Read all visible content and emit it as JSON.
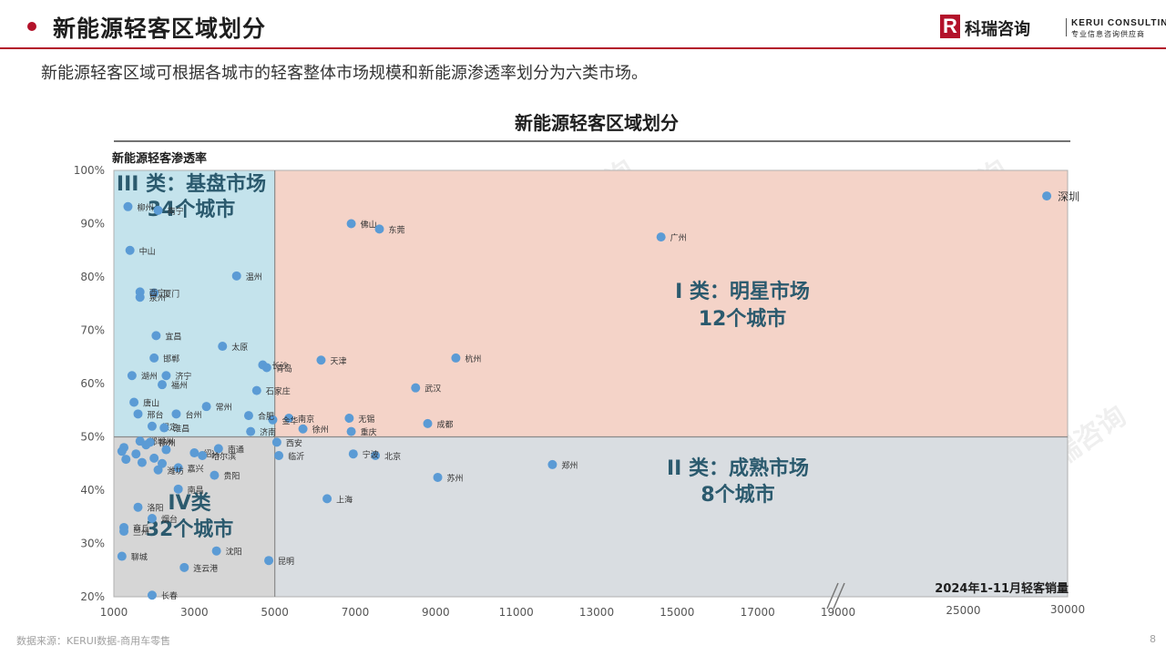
{
  "header": {
    "title": "新能源轻客区域划分",
    "logo_cn": "科瑞咨询",
    "logo_en": "KERUI CONSULTING",
    "logo_tagline": "专业信息咨询供应商",
    "logo_mark": "R"
  },
  "subtitle": "新能源轻客区域可根据各城市的轻客整体市场规模和新能源渗透率划分为六类市场。",
  "footer": {
    "source": "数据来源：KERUI数据-商用车零售",
    "page": "8"
  },
  "watermark_text": "科瑞咨询",
  "colors": {
    "accent": "#b3122a",
    "point": "#5b9bd5",
    "q1": "#f4d3c8",
    "q2": "#d9dde1",
    "q3": "#c4e3ec",
    "q4": "#d6d6d6",
    "quadrant_label": "#2b5a6e"
  },
  "chart_data": {
    "type": "scatter",
    "title": "新能源轻客区域划分",
    "xlabel": "2024年1-11月轻客销量",
    "ylabel": "新能源轻客渗透率",
    "x_ticks": [
      "1000",
      "3000",
      "5000",
      "7000",
      "9000",
      "11000",
      "13000",
      "15000",
      "17000",
      "19000",
      "25000",
      "30000"
    ],
    "y_ticks": [
      "100%",
      "90%",
      "80%",
      "70%",
      "60%",
      "50%",
      "40%",
      "30%",
      "20%"
    ],
    "xlim": [
      1000,
      30000
    ],
    "ylim": [
      20,
      100
    ],
    "x_axis_break": true,
    "dividers": {
      "x": 5000,
      "y": 50
    },
    "quadrants": [
      {
        "label": "I 类：明星市场",
        "count": "12个城市"
      },
      {
        "label": "II 类：成熟市场",
        "count": "8个城市"
      },
      {
        "label": "III 类：基盘市场",
        "count": "34个城市"
      },
      {
        "label": "IV类",
        "count": "32个城市"
      }
    ],
    "points": [
      {
        "name": "深圳",
        "x": 29000,
        "y": 95.2
      },
      {
        "name": "佛山",
        "x": 6900,
        "y": 90.0
      },
      {
        "name": "东莞",
        "x": 7600,
        "y": 89.0
      },
      {
        "name": "广州",
        "x": 14600,
        "y": 87.5
      },
      {
        "name": "杭州",
        "x": 9500,
        "y": 64.8
      },
      {
        "name": "天津",
        "x": 6150,
        "y": 64.4
      },
      {
        "name": "武汉",
        "x": 8500,
        "y": 59.2
      },
      {
        "name": "成都",
        "x": 8800,
        "y": 52.5
      },
      {
        "name": "长沙",
        "x": 4700,
        "y": 63.5
      },
      {
        "name": "青岛",
        "x": 4800,
        "y": 63.0
      },
      {
        "name": "石家庄",
        "x": 4550,
        "y": 58.7
      },
      {
        "name": "南京",
        "x": 5350,
        "y": 53.5
      },
      {
        "name": "无锡",
        "x": 6850,
        "y": 53.5
      },
      {
        "name": "重庆",
        "x": 6900,
        "y": 51.0
      },
      {
        "name": "徐州",
        "x": 5700,
        "y": 51.5
      },
      {
        "name": "金华",
        "x": 4950,
        "y": 53.2
      },
      {
        "name": "合肥",
        "x": 4350,
        "y": 54.0
      },
      {
        "name": "济南",
        "x": 4400,
        "y": 51.0
      },
      {
        "name": "郑州",
        "x": 11900,
        "y": 44.8
      },
      {
        "name": "北京",
        "x": 7500,
        "y": 46.5
      },
      {
        "name": "宁波",
        "x": 6950,
        "y": 46.8
      },
      {
        "name": "苏州",
        "x": 9050,
        "y": 42.4
      },
      {
        "name": "上海",
        "x": 6300,
        "y": 38.4
      },
      {
        "name": "西安",
        "x": 5050,
        "y": 49.0
      },
      {
        "name": "临沂",
        "x": 5100,
        "y": 46.5
      },
      {
        "name": "昆明",
        "x": 4850,
        "y": 26.8
      },
      {
        "name": "柳州",
        "x": 1350,
        "y": 93.2
      },
      {
        "name": "南宁",
        "x": 2100,
        "y": 92.5
      },
      {
        "name": "中山",
        "x": 1400,
        "y": 85.0
      },
      {
        "name": "温州",
        "x": 4050,
        "y": 80.2
      },
      {
        "name": "厦门",
        "x": 2000,
        "y": 77.0
      },
      {
        "name": "西宁",
        "x": 1650,
        "y": 77.2
      },
      {
        "name": "泉州",
        "x": 1650,
        "y": 76.2
      },
      {
        "name": "宜昌",
        "x": 2050,
        "y": 69.0
      },
      {
        "name": "太原",
        "x": 3700,
        "y": 67.0
      },
      {
        "name": "邯郸",
        "x": 2000,
        "y": 64.8
      },
      {
        "name": "湖州",
        "x": 1450,
        "y": 61.5
      },
      {
        "name": "济宁",
        "x": 2300,
        "y": 61.5
      },
      {
        "name": "福州",
        "x": 2200,
        "y": 59.8
      },
      {
        "name": "唐山",
        "x": 1500,
        "y": 56.5
      },
      {
        "name": "常州",
        "x": 3300,
        "y": 55.7
      },
      {
        "name": "邢台",
        "x": 1600,
        "y": 54.3
      },
      {
        "name": "台州",
        "x": 2550,
        "y": 54.3
      },
      {
        "name": "保定",
        "x": 1950,
        "y": 52.0
      },
      {
        "name": "淮昌",
        "x": 2250,
        "y": 51.7
      },
      {
        "name": "绍兴",
        "x": 3000,
        "y": 47.0
      },
      {
        "name": "南通",
        "x": 3600,
        "y": 47.8
      },
      {
        "name": "哈尔滨",
        "x": 3200,
        "y": 46.5
      },
      {
        "name": "嘉兴",
        "x": 2600,
        "y": 44.2
      },
      {
        "name": "潍坊",
        "x": 2100,
        "y": 43.8
      },
      {
        "name": "贵阳",
        "x": 3500,
        "y": 42.8
      },
      {
        "name": "南昌",
        "x": 2600,
        "y": 40.2
      },
      {
        "name": "洛阳",
        "x": 1600,
        "y": 36.8
      },
      {
        "name": "烟台",
        "x": 1950,
        "y": 34.7
      },
      {
        "name": "商丘",
        "x": 1250,
        "y": 33.0
      },
      {
        "name": "兰州",
        "x": 1250,
        "y": 32.3
      },
      {
        "name": "聊城",
        "x": 1200,
        "y": 27.6
      },
      {
        "name": "沈阳",
        "x": 3550,
        "y": 28.6
      },
      {
        "name": "连云港",
        "x": 2750,
        "y": 25.5
      },
      {
        "name": "长春",
        "x": 1950,
        "y": 20.3
      },
      {
        "name": "邯郸州",
        "x": 1650,
        "y": 49.2
      },
      {
        "name": "扬州",
        "x": 1900,
        "y": 49.0
      },
      {
        "name": "",
        "x": 1250,
        "y": 48.0
      },
      {
        "name": "",
        "x": 1200,
        "y": 47.3
      },
      {
        "name": "",
        "x": 1300,
        "y": 45.8
      },
      {
        "name": "",
        "x": 1550,
        "y": 46.8
      },
      {
        "name": "",
        "x": 1700,
        "y": 45.2
      },
      {
        "name": "",
        "x": 2000,
        "y": 46.0
      },
      {
        "name": "",
        "x": 2200,
        "y": 45.0
      },
      {
        "name": "",
        "x": 1800,
        "y": 48.5
      },
      {
        "name": "",
        "x": 2300,
        "y": 47.6
      }
    ]
  }
}
